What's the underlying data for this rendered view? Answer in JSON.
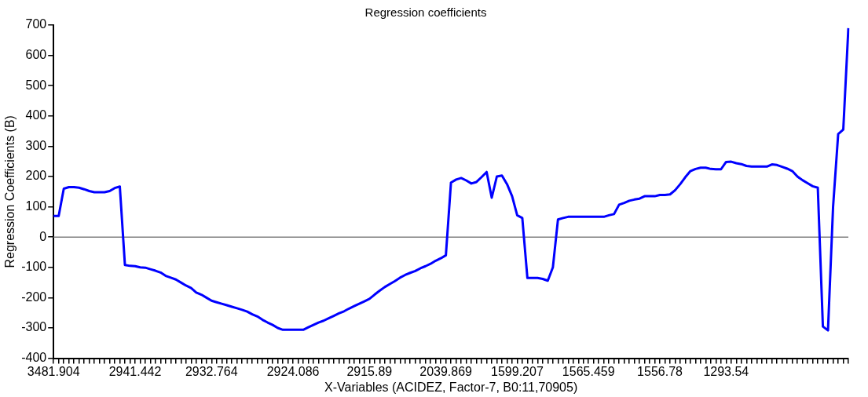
{
  "chart_data": {
    "type": "line",
    "title": "Regression coefficients",
    "xlabel": "X-Variables (ACIDEZ, Factor-7, B0:11,70905)",
    "ylabel": "Regression Coefficients (B)",
    "categories": [
      "3481.904",
      null,
      null,
      null,
      null,
      null,
      null,
      null,
      null,
      null,
      null,
      null,
      null,
      null,
      null,
      null,
      "2941.442",
      null,
      null,
      null,
      null,
      null,
      null,
      null,
      null,
      null,
      null,
      null,
      null,
      null,
      null,
      "2932.764",
      null,
      null,
      null,
      null,
      null,
      null,
      null,
      null,
      null,
      null,
      null,
      null,
      null,
      null,
      null,
      "2924.086",
      null,
      null,
      null,
      null,
      null,
      null,
      null,
      null,
      null,
      null,
      null,
      null,
      null,
      null,
      "2915.89",
      null,
      null,
      null,
      null,
      null,
      null,
      null,
      null,
      null,
      null,
      null,
      null,
      null,
      null,
      "2039.869",
      null,
      null,
      null,
      null,
      null,
      null,
      null,
      null,
      null,
      null,
      null,
      null,
      null,
      "1599.207",
      null,
      null,
      null,
      null,
      null,
      null,
      null,
      null,
      null,
      null,
      null,
      null,
      null,
      "1565.459",
      null,
      null,
      null,
      null,
      null,
      null,
      null,
      null,
      null,
      null,
      null,
      null,
      null,
      "1556.78",
      null,
      null,
      null,
      null,
      null,
      null,
      null,
      null,
      null,
      null,
      null,
      null,
      "1293.54",
      null,
      null,
      null,
      null,
      null,
      null,
      null,
      null,
      null,
      null,
      null,
      null,
      null,
      null,
      null,
      null,
      null,
      null,
      null,
      null,
      null,
      null,
      null,
      null
    ],
    "series": [
      {
        "color": "#0000ff",
        "values": [
          70,
          70,
          160,
          165,
          165,
          163,
          158,
          152,
          148,
          148,
          148,
          152,
          162,
          167,
          -92,
          -95,
          -96,
          -100,
          -101,
          -106,
          -111,
          -117,
          -128,
          -134,
          -140,
          -150,
          -160,
          -168,
          -183,
          -190,
          -200,
          -210,
          -215,
          -220,
          -225,
          -230,
          -235,
          -240,
          -246,
          -255,
          -262,
          -273,
          -282,
          -290,
          -300,
          -306,
          -306,
          -306,
          -306,
          -306,
          -298,
          -290,
          -282,
          -276,
          -268,
          -260,
          -252,
          -245,
          -236,
          -228,
          -220,
          -212,
          -204,
          -190,
          -177,
          -165,
          -155,
          -145,
          -134,
          -125,
          -118,
          -112,
          -103,
          -96,
          -88,
          -78,
          -70,
          -60,
          180,
          190,
          195,
          187,
          177,
          182,
          198,
          215,
          130,
          200,
          203,
          175,
          135,
          72,
          63,
          -135,
          -135,
          -135,
          -138,
          -144,
          -100,
          58,
          63,
          67,
          67,
          67,
          67,
          67,
          67,
          67,
          67,
          72,
          76,
          107,
          113,
          120,
          124,
          127,
          135,
          135,
          135,
          139,
          139,
          141,
          155,
          175,
          198,
          218,
          225,
          229,
          229,
          225,
          224,
          224,
          248,
          249,
          244,
          241,
          235,
          233,
          233,
          233,
          233,
          240,
          238,
          232,
          226,
          218,
          200,
          188,
          178,
          168,
          163,
          -295,
          -308,
          100,
          340,
          355,
          690
        ]
      }
    ],
    "ylim": [
      -400,
      700
    ],
    "yticks": [
      -400,
      -300,
      -200,
      -100,
      0,
      100,
      200,
      300,
      400,
      500,
      600,
      700
    ],
    "ref_lines": [
      {
        "axis": "y",
        "value": 0,
        "color": "#808080"
      }
    ],
    "grid": false,
    "legend": false,
    "marker": "none",
    "line_style": "solid"
  }
}
